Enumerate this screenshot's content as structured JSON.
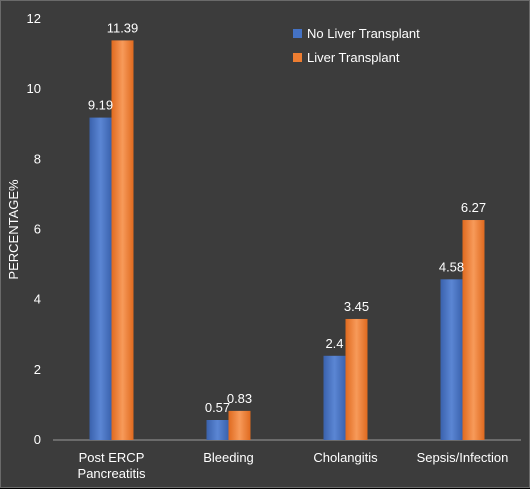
{
  "chart_data": {
    "type": "bar",
    "title": "",
    "xlabel": "",
    "ylabel": "PERCENTAGE%",
    "ylim": [
      0,
      12
    ],
    "yticks": [
      0,
      2,
      4,
      6,
      8,
      10,
      12
    ],
    "categories": [
      [
        "Post ERCP",
        "Pancreatitis"
      ],
      [
        "Bleeding"
      ],
      [
        "Cholangitis"
      ],
      [
        "Sepsis/Infection"
      ]
    ],
    "series": [
      {
        "name": "No Liver Transplant",
        "color": "#4472c4",
        "values": [
          9.19,
          0.57,
          2.4,
          4.58
        ],
        "labels": [
          "9.19",
          "0.57",
          "2.4",
          "4.58"
        ]
      },
      {
        "name": "Liver Transplant",
        "color": "#ed7d31",
        "values": [
          11.39,
          0.83,
          3.45,
          6.27
        ],
        "labels": [
          "11.39",
          "0.83",
          "3.45",
          "6.27"
        ]
      }
    ],
    "grid": false,
    "legend_position": "top-right"
  }
}
